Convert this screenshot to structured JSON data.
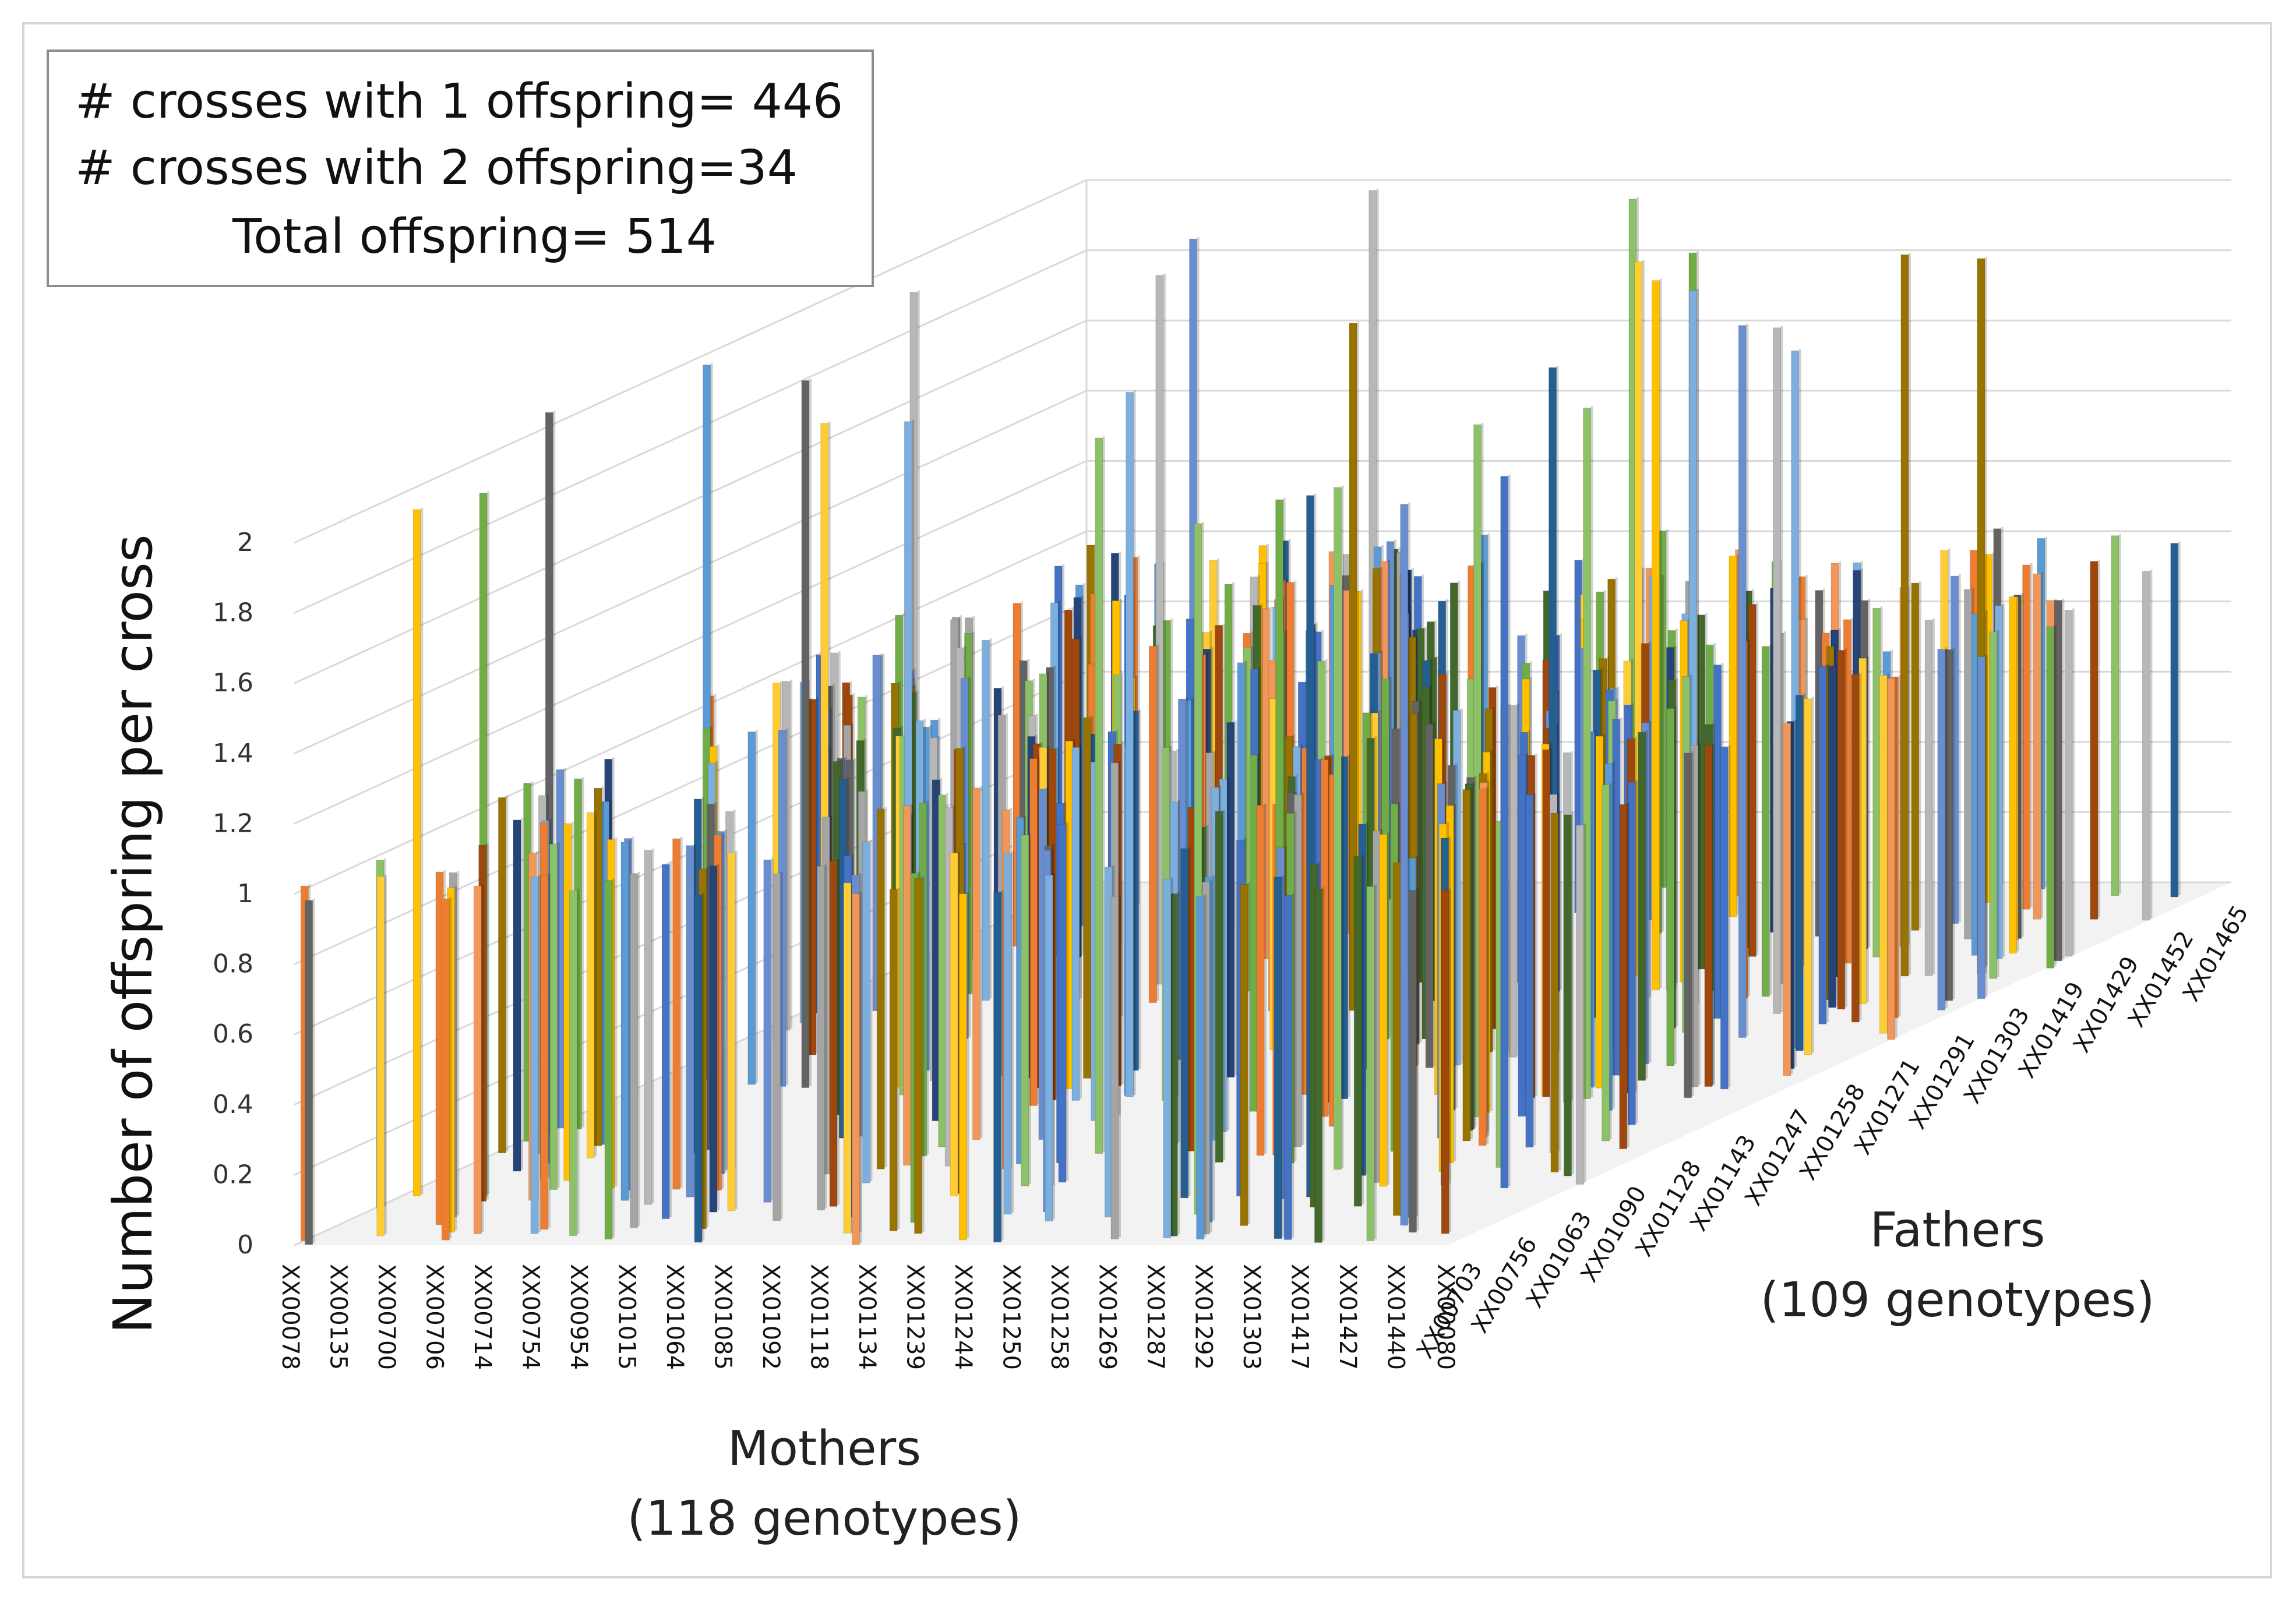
{
  "chart_data": {
    "type": "bar",
    "subtype": "3d-column",
    "legend_text": [
      "# crosses with 1 offspring= 446",
      "# crosses with 2 offspring=34",
      "Total offspring= 514"
    ],
    "ylabel": "Number of offspring per cross",
    "ylim": [
      0,
      2
    ],
    "yticks": [
      "0",
      "0.2",
      "0.4",
      "0.6",
      "0.8",
      "1",
      "1.2",
      "1.4",
      "1.6",
      "1.8",
      "2"
    ],
    "mothers_axis": {
      "label_line1": "Mothers",
      "label_line2": "(118 genotypes)",
      "tick_labels": [
        "XX00078",
        "XX00135",
        "XX00700",
        "XX00706",
        "XX00714",
        "XX00754",
        "XX00954",
        "XX01015",
        "XX01064",
        "XX01085",
        "XX01092",
        "XX01118",
        "XX01134",
        "XX01239",
        "XX01244",
        "XX01250",
        "XX01258",
        "XX01269",
        "XX01287",
        "XX01292",
        "XX01303",
        "XX01417",
        "XX01427",
        "XX01440",
        "XX00080"
      ]
    },
    "fathers_axis": {
      "label_line1": "Fathers",
      "label_line2": "(109 genotypes)",
      "tick_labels": [
        "XX00703",
        "XX00756",
        "XX01063",
        "XX01090",
        "XX01128",
        "XX01143",
        "XX01247",
        "XX01258",
        "XX01271",
        "XX01291",
        "XX01303",
        "XX01419",
        "XX01429",
        "XX01452",
        "XX01465"
      ]
    },
    "series_note": "Each cross (mother x father) is one column with value 1 or 2",
    "counts": {
      "value_1": 446,
      "value_2": 34
    },
    "colors": [
      "#4472c4",
      "#ed7d31",
      "#a5a5a5",
      "#ffc000",
      "#5b9bd5",
      "#70ad47",
      "#264478",
      "#9e480e",
      "#636363",
      "#997300",
      "#255e91",
      "#43682b",
      "#698ed0",
      "#f1975a",
      "#b7b7b7",
      "#ffcd33",
      "#7cafdd",
      "#8cc168"
    ]
  }
}
